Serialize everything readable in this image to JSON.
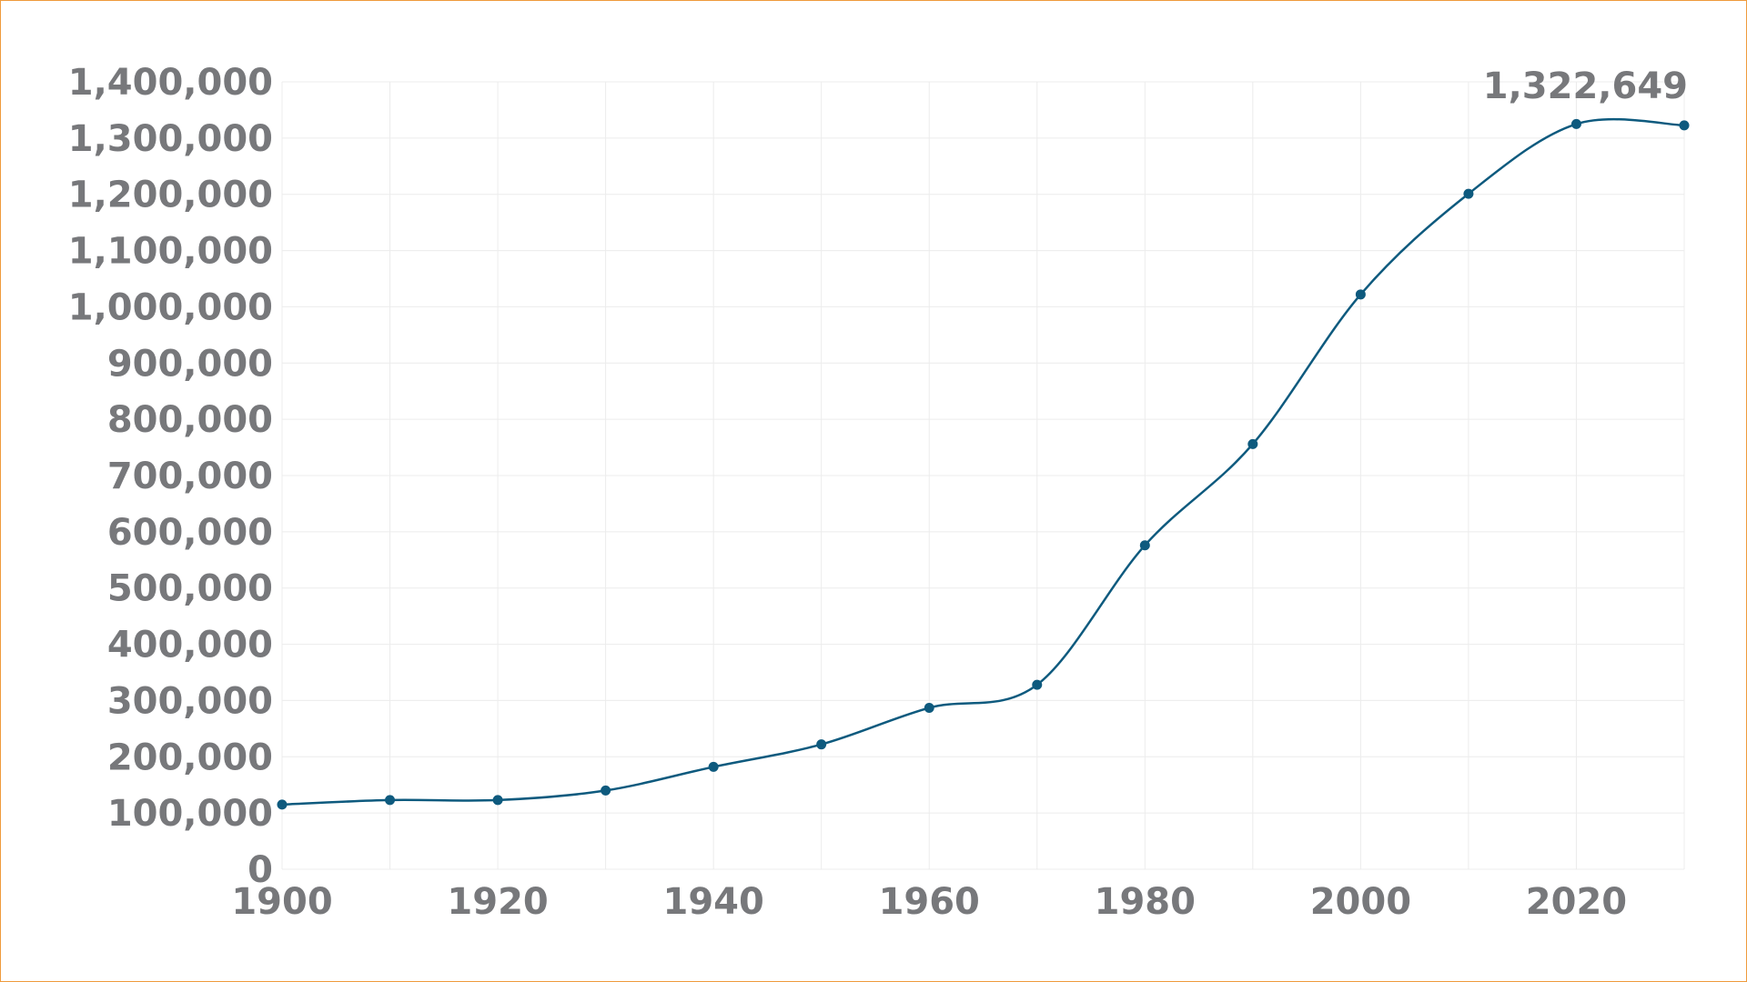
{
  "chart_data": {
    "type": "line",
    "title": "",
    "xlabel": "",
    "ylabel": "",
    "x": [
      1900,
      1910,
      1920,
      1930,
      1940,
      1950,
      1960,
      1970,
      1980,
      1990,
      2000,
      2010,
      2020,
      2030
    ],
    "series": [
      {
        "values": [
          115000,
          123000,
          123000,
          140000,
          182000,
          222000,
          287000,
          328000,
          576000,
          756000,
          1022000,
          1201000,
          1325000,
          1322649
        ]
      }
    ],
    "xlim": [
      1900,
      2030
    ],
    "ylim": [
      0,
      1400000
    ],
    "x_ticks": [
      1900,
      1920,
      1940,
      1960,
      1980,
      2000,
      2020
    ],
    "x_tick_labels": [
      "1900",
      "1920",
      "1940",
      "1960",
      "1980",
      "2000",
      "2020"
    ],
    "y_ticks": [
      0,
      100000,
      200000,
      300000,
      400000,
      500000,
      600000,
      700000,
      800000,
      900000,
      1000000,
      1100000,
      1200000,
      1300000,
      1400000
    ],
    "y_tick_labels": [
      "0",
      "100,000",
      "200,000",
      "300,000",
      "400,000",
      "500,000",
      "600,000",
      "700,000",
      "800,000",
      "900,000",
      "1,000,000",
      "1,100,000",
      "1,200,000",
      "1,300,000",
      "1,400,000"
    ],
    "grid": true,
    "legend": "none",
    "annotations": [
      {
        "text": "1,322,649",
        "x": 2030,
        "y": 1322649
      }
    ],
    "colors": {
      "line": "#0e5a7e",
      "marker": "#0e5a7e",
      "label": "#77787b",
      "grid": "#ececec",
      "frame": "#ef9a3c"
    }
  }
}
